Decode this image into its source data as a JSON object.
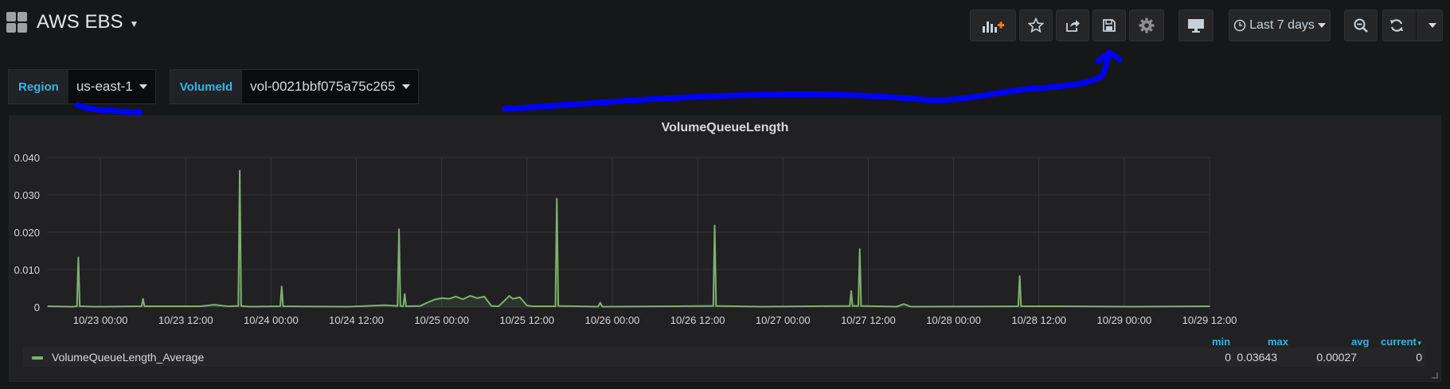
{
  "header": {
    "dashboard_title": "AWS EBS",
    "time_range": "Last 7 days"
  },
  "icons": {
    "dashboard": "grid-icon",
    "add_panel": "add-panel-icon",
    "star": "star-icon",
    "share": "share-icon",
    "save": "save-icon",
    "settings": "gear-icon",
    "tv_mode": "monitor-icon",
    "time_picker": "clock-icon",
    "zoom_out": "zoom-out-icon",
    "refresh": "refresh-icon",
    "refresh_interval": "chevron-down-icon"
  },
  "variables": [
    {
      "label": "Region",
      "value": "us-east-1"
    },
    {
      "label": "VolumeId",
      "value": "vol-0021bbf075a75c265"
    }
  ],
  "panel": {
    "title": "VolumeQueueLength",
    "legend": {
      "headers": {
        "min": "min",
        "max": "max",
        "avg": "avg",
        "current": "current"
      },
      "series_name": "VolumeQueueLength_Average",
      "min": "0",
      "max": "0.03643",
      "avg": "0.00027",
      "current": "0"
    }
  },
  "colors": {
    "background": "#161719",
    "panel": "#212124",
    "series": "#7eb26d",
    "accent": "#33b5e5",
    "annotation": "#0000ff"
  },
  "chart_data": {
    "type": "line",
    "title": "VolumeQueueLength",
    "xlabel": "",
    "ylabel": "",
    "ylim": [
      0,
      0.04
    ],
    "y_ticks": [
      "0",
      "0.010",
      "0.020",
      "0.030",
      "0.040"
    ],
    "x_ticks": [
      "10/23 00:00",
      "10/23 12:00",
      "10/24 00:00",
      "10/24 12:00",
      "10/25 00:00",
      "10/25 12:00",
      "10/26 00:00",
      "10/26 12:00",
      "10/27 00:00",
      "10/27 12:00",
      "10/28 00:00",
      "10/28 12:00",
      "10/29 00:00",
      "10/29 12:00"
    ],
    "x_range_hours": [
      -7.4,
      156
    ],
    "grid": true,
    "legend": "bottom",
    "series": [
      {
        "name": "VolumeQueueLength_Average",
        "color": "#7eb26d",
        "points": [
          [
            -7.4,
            0.0002
          ],
          [
            -4.0,
            0.0001
          ],
          [
            -3.3,
            0.0002
          ],
          [
            -3.1,
            0.0133
          ],
          [
            -2.9,
            0.0002
          ],
          [
            -1.0,
            0.0001
          ],
          [
            5.8,
            0.0002
          ],
          [
            6.0,
            0.0022
          ],
          [
            6.2,
            0.0002
          ],
          [
            14.0,
            0.0002
          ],
          [
            16.0,
            0.0006
          ],
          [
            18.0,
            0.0002
          ],
          [
            19.4,
            0.0003
          ],
          [
            19.6,
            0.0365
          ],
          [
            19.8,
            0.0003
          ],
          [
            21.0,
            0.0001
          ],
          [
            25.3,
            0.0002
          ],
          [
            25.5,
            0.0055
          ],
          [
            25.7,
            0.0002
          ],
          [
            35.0,
            0.0001
          ],
          [
            40.0,
            0.0005
          ],
          [
            41.8,
            0.0003
          ],
          [
            42.0,
            0.0208
          ],
          [
            42.2,
            0.0003
          ],
          [
            42.6,
            0.0002
          ],
          [
            42.8,
            0.0035
          ],
          [
            43.0,
            0.0002
          ],
          [
            45.0,
            0.0003
          ],
          [
            46.0,
            0.0012
          ],
          [
            47.0,
            0.002
          ],
          [
            48.0,
            0.0024
          ],
          [
            49.0,
            0.0022
          ],
          [
            50.0,
            0.0028
          ],
          [
            51.0,
            0.0021
          ],
          [
            52.0,
            0.003
          ],
          [
            53.0,
            0.0024
          ],
          [
            54.0,
            0.0028
          ],
          [
            55.0,
            0.0003
          ],
          [
            56.0,
            0.0002
          ],
          [
            57.0,
            0.002
          ],
          [
            57.5,
            0.003
          ],
          [
            58.0,
            0.0022
          ],
          [
            59.0,
            0.0026
          ],
          [
            60.0,
            0.0004
          ],
          [
            61.0,
            0.0002
          ],
          [
            64.0,
            0.0002
          ],
          [
            64.2,
            0.029
          ],
          [
            64.4,
            0.0003
          ],
          [
            70.0,
            0.0001
          ],
          [
            70.3,
            0.0012
          ],
          [
            70.6,
            0.0001
          ],
          [
            81.0,
            0.0002
          ],
          [
            86.2,
            0.0003
          ],
          [
            86.4,
            0.0218
          ],
          [
            86.6,
            0.0003
          ],
          [
            93.0,
            0.0001
          ],
          [
            105.4,
            0.0003
          ],
          [
            105.6,
            0.0043
          ],
          [
            105.8,
            0.0003
          ],
          [
            106.6,
            0.0003
          ],
          [
            106.8,
            0.0155
          ],
          [
            107.0,
            0.0003
          ],
          [
            112.0,
            0.0001
          ],
          [
            113.0,
            0.0008
          ],
          [
            114.0,
            0.0001
          ],
          [
            129.1,
            0.0002
          ],
          [
            129.3,
            0.0083
          ],
          [
            129.5,
            0.0002
          ],
          [
            135.0,
            0.0002
          ],
          [
            145.0,
            0.0001
          ],
          [
            156.0,
            0.0002
          ]
        ]
      }
    ]
  }
}
